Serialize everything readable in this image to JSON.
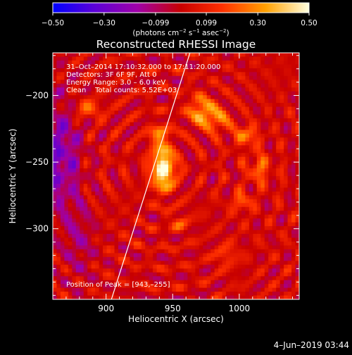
{
  "chart_data": {
    "type": "heatmap",
    "title": "Reconstructed RHESSI Image",
    "xlabel": "Heliocentric X (arcsec)",
    "ylabel": "Heliocentric Y (arcsec)",
    "xlim": [
      860,
      1045
    ],
    "ylim": [
      -353,
      -168
    ],
    "x_ticks": [
      900,
      950,
      1000
    ],
    "x_tick_labels": [
      "900",
      "950",
      "1000"
    ],
    "y_ticks": [
      -200,
      -250,
      -300
    ],
    "y_tick_labels": [
      "−200",
      "−250",
      "−300"
    ],
    "colorbar": {
      "range": [
        -0.5,
        0.5
      ],
      "ticks": [
        -0.5,
        -0.3,
        -0.099,
        0.099,
        0.3,
        0.5
      ],
      "tick_labels": [
        "−0.50",
        "−0.30",
        "−0.099",
        "0.099",
        "0.30",
        "0.50"
      ],
      "unit_parts": [
        "(photons cm",
        "−2",
        " s",
        "−1",
        " asec",
        "−2",
        ")"
      ]
    },
    "annotations": [
      "31–Oct–2014 17:10:32.000 to 17:11:20.000",
      "Detectors: 3F 6F 9F, Att 0",
      "Energy Range: 3.0 – 6.0 keV",
      "Clean    Total counts: 5.52E+03"
    ],
    "peak_label": "Position of Peak = [943,–255]",
    "peak": {
      "x": 943,
      "y": -255,
      "value": 0.5
    },
    "blobs": [
      {
        "x": 943,
        "y": -255,
        "amp": 0.55,
        "sx": 6,
        "sy": 11
      },
      {
        "x": 940,
        "y": -230,
        "amp": 0.25,
        "sx": 5,
        "sy": 6
      },
      {
        "x": 972,
        "y": -212,
        "amp": 0.32,
        "sx": 7,
        "sy": 8
      },
      {
        "x": 985,
        "y": -218,
        "amp": 0.22,
        "sx": 6,
        "sy": 6
      },
      {
        "x": 1005,
        "y": -230,
        "amp": 0.26,
        "sx": 6,
        "sy": 5
      },
      {
        "x": 1015,
        "y": -255,
        "amp": 0.2,
        "sx": 6,
        "sy": 8
      },
      {
        "x": 885,
        "y": -210,
        "amp": 0.2,
        "sx": 8,
        "sy": 5
      },
      {
        "x": 1002,
        "y": -280,
        "amp": 0.2,
        "sx": 5,
        "sy": 5
      },
      {
        "x": 955,
        "y": -295,
        "amp": 0.15,
        "sx": 5,
        "sy": 5
      },
      {
        "x": 990,
        "y": -320,
        "amp": 0.14,
        "sx": 6,
        "sy": 6
      }
    ],
    "limb": {
      "x_at_top": 963,
      "x_at_bottom": 904
    }
  },
  "footer": {
    "date": "4–Jun–2019 03:44"
  }
}
